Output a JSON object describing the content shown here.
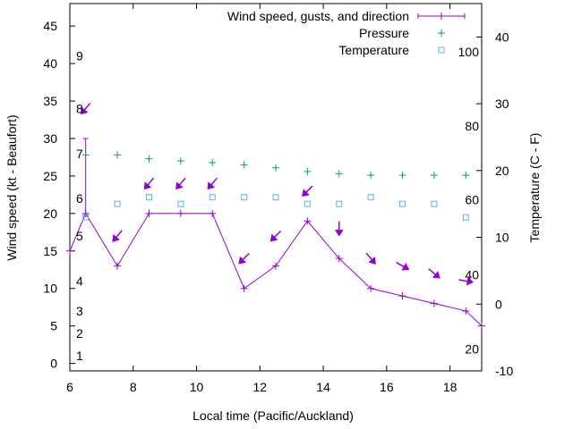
{
  "chart_data": {
    "type": "line",
    "xlabel": "Local time (Pacific/Auckland)",
    "ylabel": "Wind speed (kt - Beaufort)",
    "y2label": "Temperature (C - F)",
    "xlim": [
      6,
      19
    ],
    "ylim": [
      -1,
      48
    ],
    "y2lim": [
      -10,
      45
    ],
    "x_ticks": [
      6,
      8,
      10,
      12,
      14,
      16,
      18
    ],
    "y_ticks": [
      0,
      5,
      10,
      15,
      20,
      25,
      30,
      35,
      40,
      45
    ],
    "y2_ticks": [
      -10,
      0,
      10,
      20,
      30,
      40
    ],
    "beaufort_labels": [
      {
        "text": "1",
        "y": 1
      },
      {
        "text": "2",
        "y": 4
      },
      {
        "text": "3",
        "y": 7
      },
      {
        "text": "4",
        "y": 11
      },
      {
        "text": "5",
        "y": 17
      },
      {
        "text": "6",
        "y": 22
      },
      {
        "text": "7",
        "y": 28
      },
      {
        "text": "8",
        "y": 34
      },
      {
        "text": "9",
        "y": 41
      }
    ],
    "fahrenheit_labels": [
      {
        "text": "20",
        "y2": -6.7
      },
      {
        "text": "40",
        "y2": 4.4
      },
      {
        "text": "60",
        "y2": 15.6
      },
      {
        "text": "80",
        "y2": 26.7
      },
      {
        "text": "100",
        "y2": 37.8
      }
    ],
    "legend": [
      {
        "label": "Wind speed, gusts, and direction",
        "color": "#9400d3",
        "marker": "line"
      },
      {
        "label": "Pressure",
        "color": "#009e73",
        "marker": "plus"
      },
      {
        "label": "Temperature",
        "color": "#56b4e9",
        "marker": "square"
      }
    ],
    "wind": {
      "x": [
        6,
        6.5,
        7.5,
        8.5,
        9.5,
        10.5,
        11.5,
        12.5,
        13.5,
        14.5,
        15.5,
        16.5,
        17.5,
        18.5,
        19
      ],
      "values": [
        15,
        20,
        13,
        20,
        20,
        20,
        10,
        13,
        19,
        14,
        10,
        9,
        8,
        7,
        5
      ]
    },
    "gust": {
      "x": 6.5,
      "low": 20,
      "high": 30
    },
    "direction_arrows": [
      {
        "x": 6.5,
        "y": 34,
        "angle": 40
      },
      {
        "x": 7.5,
        "y": 17,
        "angle": 40
      },
      {
        "x": 8.5,
        "y": 24,
        "angle": 40
      },
      {
        "x": 9.5,
        "y": 24,
        "angle": 40
      },
      {
        "x": 10.5,
        "y": 24,
        "angle": 40
      },
      {
        "x": 11.5,
        "y": 14,
        "angle": 45
      },
      {
        "x": 12.5,
        "y": 17,
        "angle": 45
      },
      {
        "x": 13.5,
        "y": 23,
        "angle": 45
      },
      {
        "x": 14.5,
        "y": 18,
        "angle": 0
      },
      {
        "x": 15.5,
        "y": 14,
        "angle": -40
      },
      {
        "x": 16.5,
        "y": 13,
        "angle": -60
      },
      {
        "x": 17.5,
        "y": 12,
        "angle": -50
      },
      {
        "x": 18.5,
        "y": 11,
        "angle": -80
      }
    ],
    "pressure": {
      "x": [
        6.5,
        7.5,
        8.5,
        9.5,
        10.5,
        11.5,
        12.5,
        13.5,
        14.5,
        15.5,
        16.5,
        17.5,
        18.5
      ],
      "values": [
        27.8,
        27.8,
        27.3,
        27.0,
        26.8,
        26.5,
        26.1,
        25.6,
        25.3,
        25.1,
        25.1,
        25.1,
        25.1
      ]
    },
    "temperature": {
      "x": [
        6.5,
        7.5,
        8.5,
        9.5,
        10.5,
        11.5,
        12.5,
        13.5,
        14.5,
        15.5,
        16.5,
        17.5,
        18.5
      ],
      "values": [
        13,
        15,
        16,
        15,
        16,
        16,
        16,
        15,
        15,
        16,
        15,
        15,
        13
      ]
    },
    "colors": {
      "wind": "#9400d3",
      "pressure": "#009e73",
      "temperature": "#56b4e9",
      "axis": "#000000"
    }
  }
}
